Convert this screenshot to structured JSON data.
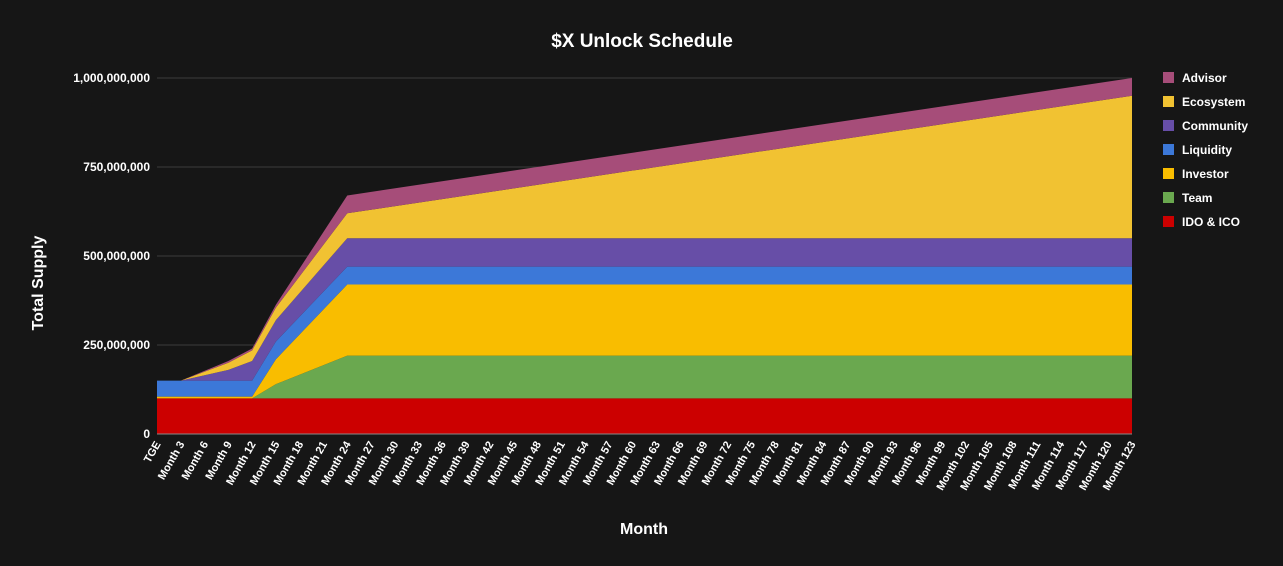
{
  "chart_data": {
    "type": "area",
    "stacked": true,
    "title": "$X Unlock Schedule",
    "xlabel": "Month",
    "ylabel": "Total Supply",
    "ylim": [
      0,
      1000000000
    ],
    "yticks": [
      0,
      250000000,
      500000000,
      750000000,
      1000000000
    ],
    "ytick_labels": [
      "0",
      "250,000,000",
      "500,000,000",
      "750,000,000",
      "1,000,000,000"
    ],
    "x_tick_labels": [
      "TGE",
      "Month 3",
      "Month 6",
      "Month 9",
      "Month 12",
      "Month 15",
      "Month 18",
      "Month 21",
      "Month 24",
      "Month 27",
      "Month 30",
      "Month 33",
      "Month 36",
      "Month 39",
      "Month 42",
      "Month 45",
      "Month 48",
      "Month 51",
      "Month 54",
      "Month 57",
      "Month 60",
      "Month 63",
      "Month 66",
      "Month 69",
      "Month 72",
      "Month 75",
      "Month 78",
      "Month 81",
      "Month 84",
      "Month 87",
      "Month 90",
      "Month 93",
      "Month 96",
      "Month 99",
      "Month 102",
      "Month 105",
      "Month 108",
      "Month 111",
      "Month 114",
      "Month 117",
      "Month 120",
      "Month 123"
    ],
    "x_months": [
      0,
      3,
      9,
      12,
      15,
      24,
      123
    ],
    "series": [
      {
        "name": "IDO & ICO",
        "color": "#cc0000",
        "values": [
          100000000,
          100000000,
          100000000,
          100000000,
          100000000,
          100000000,
          100000000
        ]
      },
      {
        "name": "Team",
        "color": "#6aa84f",
        "values": [
          0,
          0,
          0,
          0,
          40000000,
          120000000,
          120000000
        ]
      },
      {
        "name": "Investor",
        "color": "#f9bd00",
        "values": [
          5000000,
          5000000,
          5000000,
          5000000,
          70000000,
          200000000,
          200000000
        ]
      },
      {
        "name": "Liquidity",
        "color": "#3c78d8",
        "values": [
          45000000,
          45000000,
          45000000,
          45000000,
          50000000,
          50000000,
          50000000
        ]
      },
      {
        "name": "Community",
        "color": "#674ea7",
        "values": [
          0,
          0,
          30000000,
          55000000,
          60000000,
          80000000,
          80000000
        ]
      },
      {
        "name": "Ecosystem",
        "color": "#f1c232",
        "values": [
          0,
          0,
          20000000,
          30000000,
          35000000,
          70000000,
          400000000
        ]
      },
      {
        "name": "Advisor",
        "color": "#a64d79",
        "values": [
          0,
          0,
          5000000,
          5000000,
          8000000,
          50000000,
          50000000
        ]
      }
    ],
    "legend_position": "right",
    "legend_order": [
      "Advisor",
      "Ecosystem",
      "Community",
      "Liquidity",
      "Investor",
      "Team",
      "IDO & ICO"
    ],
    "grid": true
  }
}
